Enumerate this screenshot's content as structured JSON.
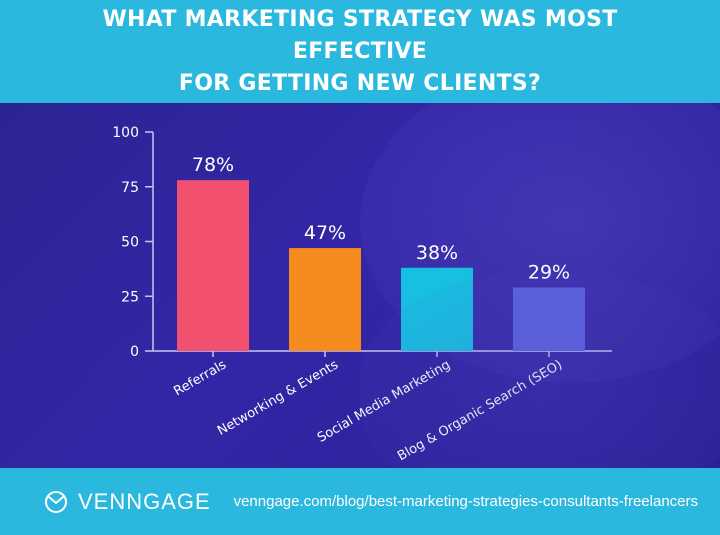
{
  "header": {
    "title_line1": "WHAT MARKETING STRATEGY WAS MOST EFFECTIVE",
    "title_line2": "FOR GETTING NEW CLIENTS?"
  },
  "chart_data": {
    "type": "bar",
    "categories": [
      "Referrals",
      "Networking & Events",
      "Social Media Marketing",
      "Blog & Organic Search (SEO)"
    ],
    "values": [
      78,
      47,
      38,
      29
    ],
    "data_labels": [
      "78%",
      "47%",
      "38%",
      "29%"
    ],
    "colors": [
      "#f2506f",
      "#f58a1f",
      "#17bfe0",
      "#5a62dc"
    ],
    "yticks": [
      0,
      25,
      50,
      75,
      100
    ],
    "ylim": [
      0,
      100
    ],
    "grid": false,
    "title": "",
    "xlabel": "",
    "ylabel": ""
  },
  "footer": {
    "brand_name": "VENNGAGE",
    "brand_icon": "venngage-logo-icon",
    "source": "venngage.com/blog/best-marketing-strategies-consultants-freelancers"
  }
}
